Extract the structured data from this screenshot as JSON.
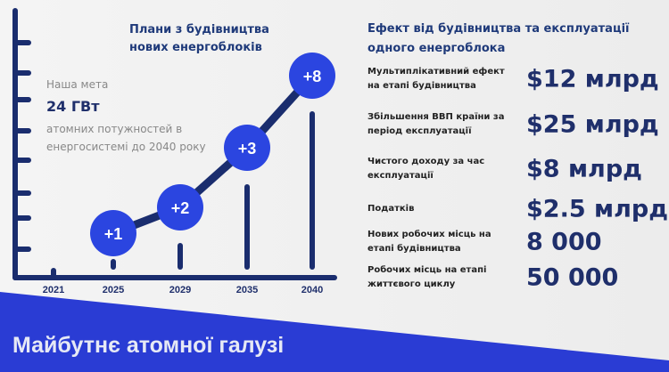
{
  "colors": {
    "accent": "#2b45e0",
    "navy": "#1a2d6e",
    "band": "#2a3cd4"
  },
  "chart_data": {
    "type": "line",
    "title": "Плани з будівництва нових енергоблоків",
    "categories": [
      "2021",
      "2025",
      "2029",
      "2035",
      "2040"
    ],
    "labels": [
      "",
      "+1",
      "+2",
      "+3",
      "+8"
    ],
    "values": [
      0,
      1,
      2,
      3,
      8
    ],
    "grid": false
  },
  "goal": {
    "caption": "Наша мета",
    "value": "24 ГВт",
    "description": "атомних потужностей в енергосистемі до 2040 року"
  },
  "effects": {
    "title": "Ефект від будівництва та експлуатації одного енергоблока",
    "rows": [
      {
        "label": "Мультиплікативний ефект на етапі будівництва",
        "value": "$12 млрд"
      },
      {
        "label": "Збільшення ВВП країни за період експлуатації",
        "value": "$25 млрд"
      },
      {
        "label": "Чистого доходу за час експлуатації",
        "value": "$8 млрд"
      },
      {
        "label": "Податків",
        "value": "$2.5 млрд"
      },
      {
        "label": "Нових робочих місць на етапі будівництва",
        "value": "8 000"
      },
      {
        "label": "Робочих місць на етапі життєвого циклу",
        "value": "50 000"
      }
    ]
  },
  "footer": {
    "title": "Майбутнє атомної галузі"
  }
}
